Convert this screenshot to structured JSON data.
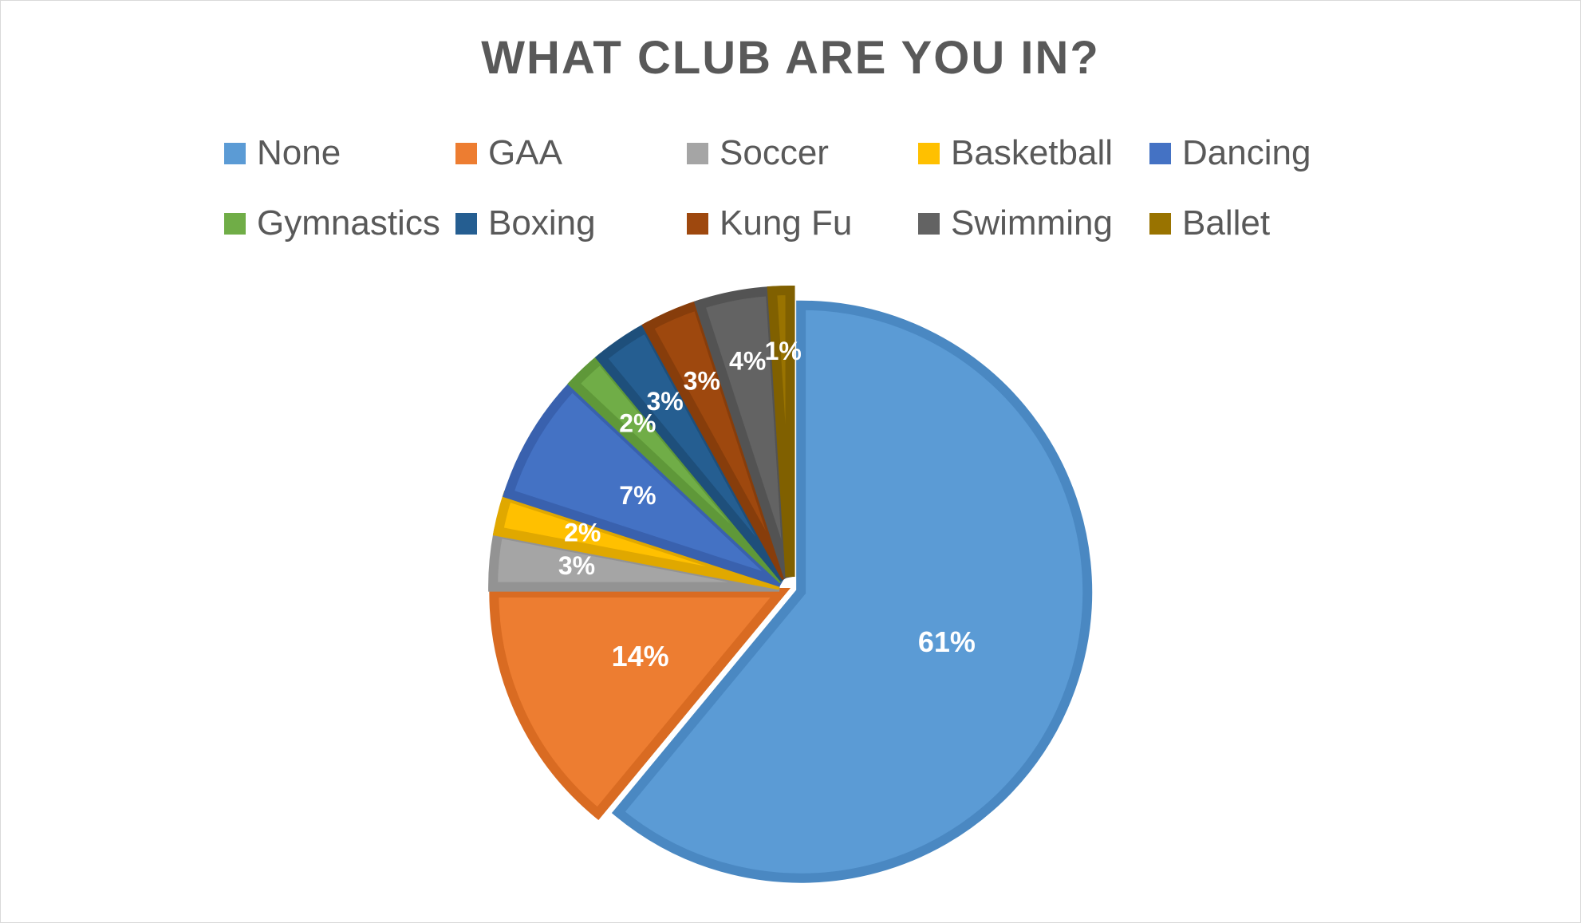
{
  "chart_data": {
    "type": "pie",
    "title": "WHAT CLUB ARE YOU IN?",
    "start_angle_deg": 0,
    "legend_position": "top",
    "slices": [
      {
        "label": "None",
        "value": 61,
        "display": "61%",
        "color": "#5B9BD5",
        "border": "#4A88C2"
      },
      {
        "label": "GAA",
        "value": 14,
        "display": "14%",
        "color": "#ED7D31",
        "border": "#D96B22"
      },
      {
        "label": "Soccer",
        "value": 3,
        "display": "3%",
        "color": "#A5A5A5",
        "border": "#939393"
      },
      {
        "label": "Basketball",
        "value": 2,
        "display": "2%",
        "color": "#FFC000",
        "border": "#E0A800"
      },
      {
        "label": "Dancing",
        "value": 7,
        "display": "7%",
        "color": "#4472C4",
        "border": "#3961AE"
      },
      {
        "label": "Gymnastics",
        "value": 2,
        "display": "2%",
        "color": "#70AD47",
        "border": "#5F9839"
      },
      {
        "label": "Boxing",
        "value": 3,
        "display": "3%",
        "color": "#255E91",
        "border": "#1E4F7B"
      },
      {
        "label": "Kung Fu",
        "value": 3,
        "display": "3%",
        "color": "#9E480E",
        "border": "#873D0B"
      },
      {
        "label": "Swimming",
        "value": 4,
        "display": "4%",
        "color": "#636363",
        "border": "#535353"
      },
      {
        "label": "Ballet",
        "value": 1,
        "display": "1%",
        "color": "#997300",
        "border": "#806000"
      }
    ]
  }
}
